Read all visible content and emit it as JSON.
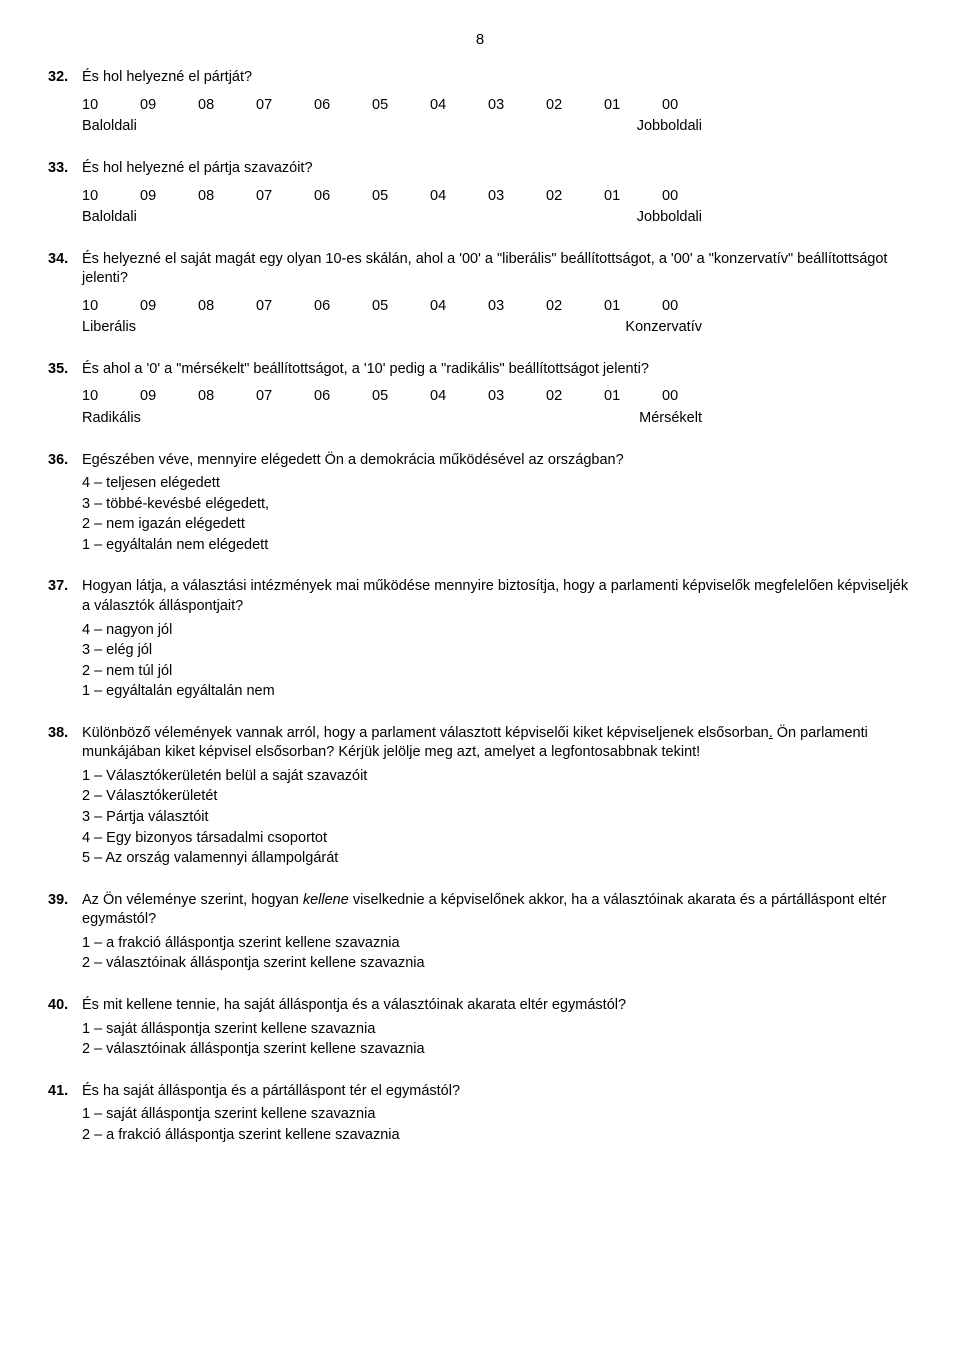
{
  "page_number": "8",
  "scale_values": [
    "10",
    "09",
    "08",
    "07",
    "06",
    "05",
    "04",
    "03",
    "02",
    "01",
    "00"
  ],
  "q32": {
    "num": "32.",
    "text": "És hol helyezné el pártját?",
    "left": "Baloldali",
    "right": "Jobboldali"
  },
  "q33": {
    "num": "33.",
    "text": "És hol helyezné el pártja szavazóit?",
    "left": "Baloldali",
    "right": "Jobboldali"
  },
  "q34": {
    "num": "34.",
    "text": "És helyezné el saját magát egy olyan 10-es skálán, ahol a '00' a \"liberális\" beállítottságot, a '00' a \"konzervatív\" beállítottságot jelenti?",
    "left": "Liberális",
    "right": "Konzervatív"
  },
  "q35": {
    "num": "35.",
    "text": "És ahol a '0' a \"mérsékelt\" beállítottságot, a '10' pedig a \"radikális\" beállítottságot jelenti?",
    "left": "Radikális",
    "right": "Mérsékelt"
  },
  "q36": {
    "num": "36.",
    "text": "Egészében véve, mennyire elégedett Ön a demokrácia működésével az országban?",
    "opts": [
      "4 – teljesen elégedett",
      "3 – többé-kevésbé elégedett,",
      "2 – nem igazán elégedett",
      "1 – egyáltalán nem elégedett"
    ]
  },
  "q37": {
    "num": "37.",
    "text": "Hogyan látja, a választási intézmények mai működése mennyire biztosítja, hogy a parlamenti képviselők megfelelően képviseljék a választók álláspontjait?",
    "opts": [
      "4 – nagyon jól",
      "3 – elég jól",
      "2 – nem túl jól",
      "1 – egyáltalán egyáltalán nem"
    ]
  },
  "q38": {
    "num": "38.",
    "text_a": "Különböző vélemények vannak arról, hogy a parlament választott képviselői kiket képviseljenek elsősorban",
    "text_b": " Ön parlamenti munkájában kiket képvisel elsősorban? Kérjük jelölje meg azt, amelyet a legfontosabbnak tekint!",
    "dot": ".",
    "opts": [
      "1 – Választókerületén belül a saját szavazóit",
      "2 – Választókerületét",
      "3 – Pártja választóit",
      "4 – Egy bizonyos társadalmi csoportot",
      "5 – Az ország valamennyi állampolgárát"
    ]
  },
  "q39": {
    "num": "39.",
    "text_a": "Az Ön véleménye szerint, hogyan ",
    "text_i": "kellene",
    "text_b": " viselkednie a képviselőnek akkor, ha a választóinak akarata és a pártálláspont eltér egymástól?",
    "opts": [
      "1 – a frakció álláspontja szerint kellene szavaznia",
      "2 – választóinak álláspontja szerint kellene szavaznia"
    ]
  },
  "q40": {
    "num": "40.",
    "text": "És mit kellene tennie, ha saját álláspontja és a választóinak akarata eltér egymástól?",
    "opts": [
      "1 – saját álláspontja szerint kellene szavaznia",
      "2 – választóinak álláspontja szerint kellene szavaznia"
    ]
  },
  "q41": {
    "num": "41.",
    "text": "És ha saját álláspontja és a pártálláspont tér el egymástól?",
    "opts": [
      "1 – saját álláspontja szerint kellene szavaznia",
      "2 – a frakció álláspontja szerint kellene szavaznia"
    ]
  }
}
